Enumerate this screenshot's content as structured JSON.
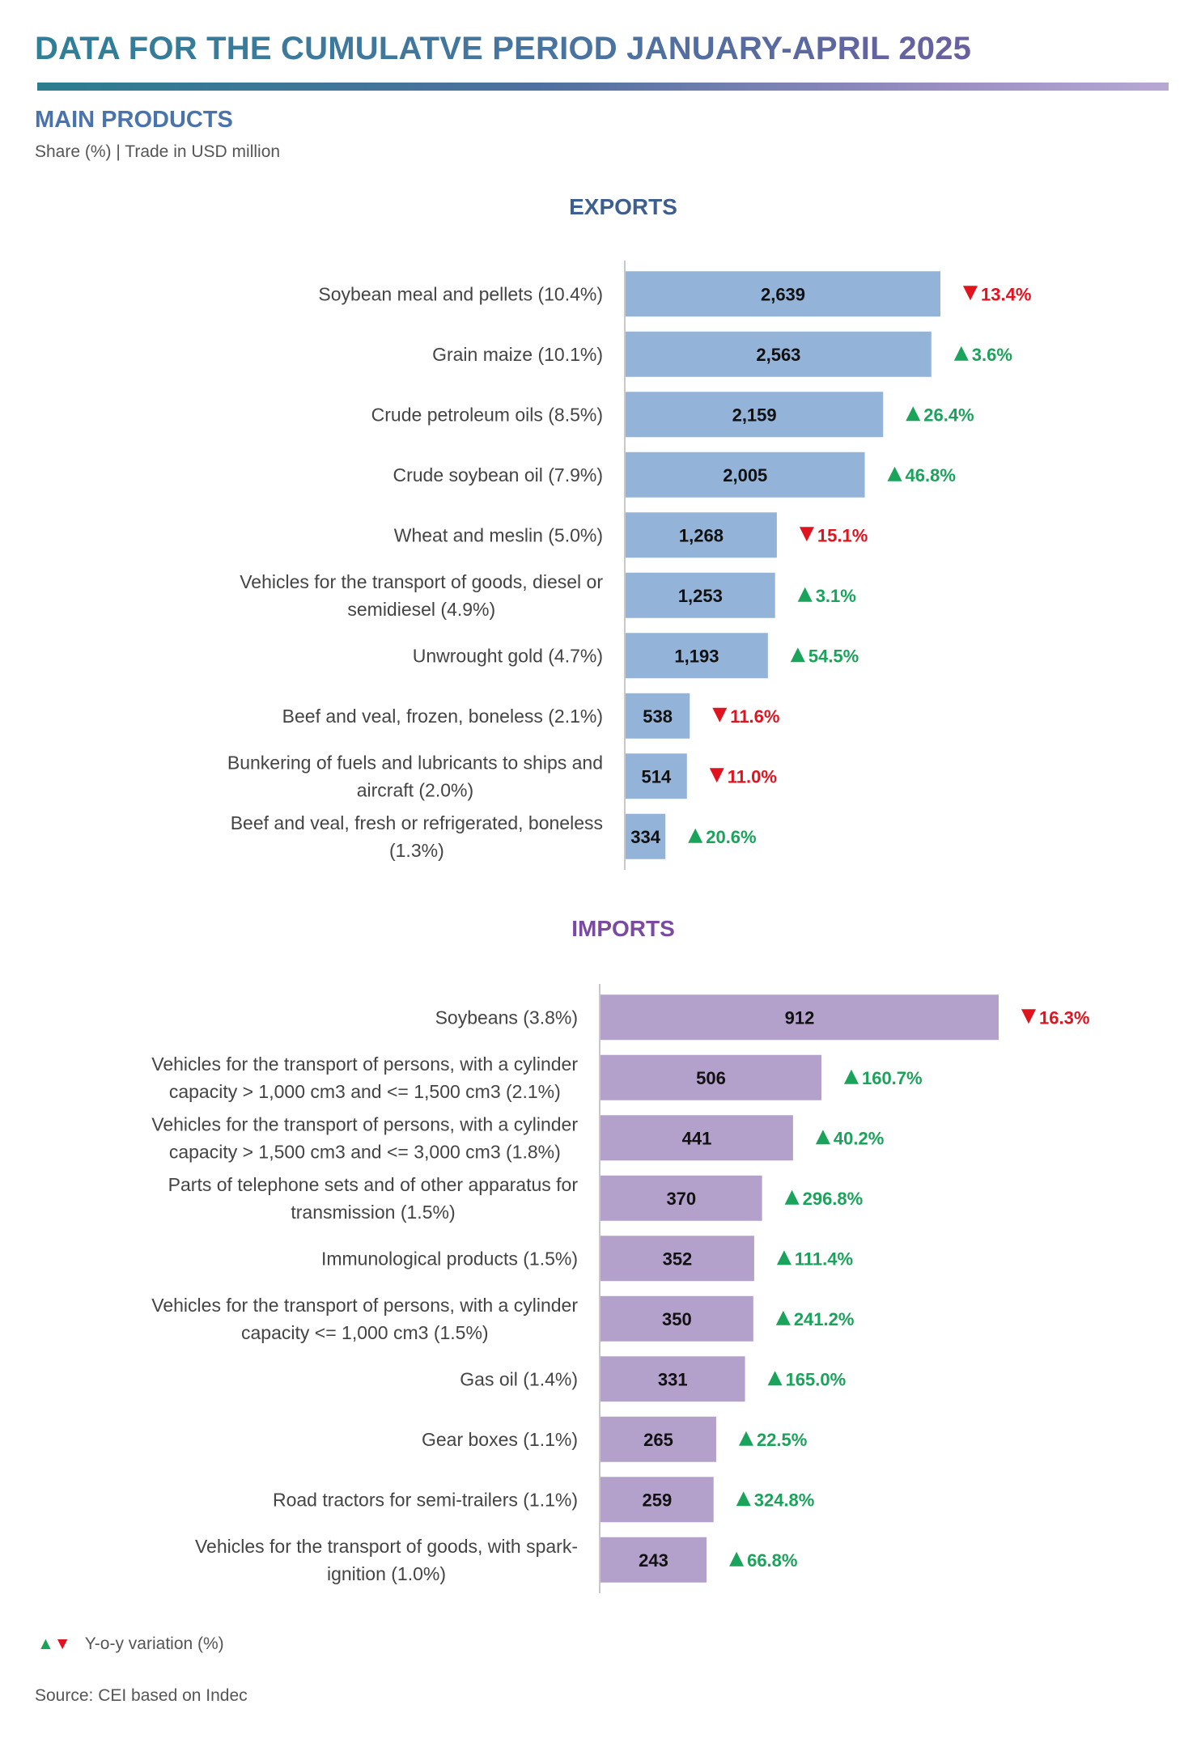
{
  "header": {
    "title": "DATA FOR THE CUMULATVE PERIOD JANUARY-APRIL 2025",
    "section_title": "MAIN PRODUCTS",
    "subtitle": "Share (%) | Trade in USD million"
  },
  "colors": {
    "export_bar": "#94b3d8",
    "import_bar": "#b3a1cb",
    "up": "#1aa35a",
    "down": "#e0141e"
  },
  "chart_data": [
    {
      "type": "bar",
      "orientation": "horizontal",
      "title": "EXPORTS",
      "categories": [
        [
          "Soybean meal and pellets (10.4%)"
        ],
        [
          "Grain maize (10.1%)"
        ],
        [
          "Crude petroleum oils (8.5%)"
        ],
        [
          "Crude soybean oil  (7.9%)"
        ],
        [
          "Wheat and meslin (5.0%)"
        ],
        [
          "Vehicles for the transport of goods, diesel or",
          "semidiesel (4.9%)"
        ],
        [
          "Unwrought gold (4.7%)"
        ],
        [
          "Beef and veal, frozen, boneless (2.1%)"
        ],
        [
          "Bunkering of fuels and lubricants to ships and",
          "aircraft (2.0%)"
        ],
        [
          "Beef and veal, fresh or refrigerated, boneless",
          "(1.3%)"
        ]
      ],
      "values": [
        2639,
        2563,
        2159,
        2005,
        1268,
        1253,
        1193,
        538,
        514,
        334
      ],
      "value_labels": [
        "2,639",
        "2,563",
        "2,159",
        "2,005",
        "1,268",
        "1,253",
        "1,193",
        "538",
        "514",
        "334"
      ],
      "yoy_direction": [
        "down",
        "up",
        "up",
        "up",
        "down",
        "up",
        "up",
        "down",
        "down",
        "up"
      ],
      "yoy_labels": [
        "13.4%",
        "3.6%",
        "26.4%",
        "46.8%",
        "15.1%",
        "3.1%",
        "54.5%",
        "11.6%",
        "11.0%",
        "20.6%"
      ]
    },
    {
      "type": "bar",
      "orientation": "horizontal",
      "title": "IMPORTS",
      "categories": [
        [
          "Soybeans (3.8%)"
        ],
        [
          "Vehicles for the transport of persons, with a cylinder",
          "capacity > 1,000 cm3 and <= 1,500 cm3 (2.1%)"
        ],
        [
          "Vehicles for the transport of persons, with a cylinder",
          "capacity > 1,500 cm3 and <= 3,000 cm3 (1.8%)"
        ],
        [
          "Parts of telephone sets and of other apparatus for",
          "transmission (1.5%)"
        ],
        [
          "Immunological products (1.5%)"
        ],
        [
          "Vehicles for the transport of persons, with a cylinder",
          "capacity <= 1,000 cm3 (1.5%)"
        ],
        [
          "Gas oil  (1.4%)"
        ],
        [
          "Gear boxes (1.1%)"
        ],
        [
          "Road tractors for semi-trailers (1.1%)"
        ],
        [
          "Vehicles for the transport of goods, with spark-",
          "ignition (1.0%)"
        ]
      ],
      "values": [
        912,
        506,
        441,
        370,
        352,
        350,
        331,
        265,
        259,
        243
      ],
      "value_labels": [
        "912",
        "506",
        "441",
        "370",
        "352",
        "350",
        "331",
        "265",
        "259",
        "243"
      ],
      "yoy_direction": [
        "down",
        "up",
        "up",
        "up",
        "up",
        "up",
        "up",
        "up",
        "up",
        "up"
      ],
      "yoy_labels": [
        "16.3%",
        "160.7%",
        "40.2%",
        "296.8%",
        "111.4%",
        "241.2%",
        "165.0%",
        "22.5%",
        "324.8%",
        "66.8%"
      ]
    }
  ],
  "legend": {
    "symbols_up": "▲",
    "symbols_down": "▼",
    "text": "Y-o-y variation (%)"
  },
  "footer": {
    "source": "Source: CEI based on Indec"
  }
}
